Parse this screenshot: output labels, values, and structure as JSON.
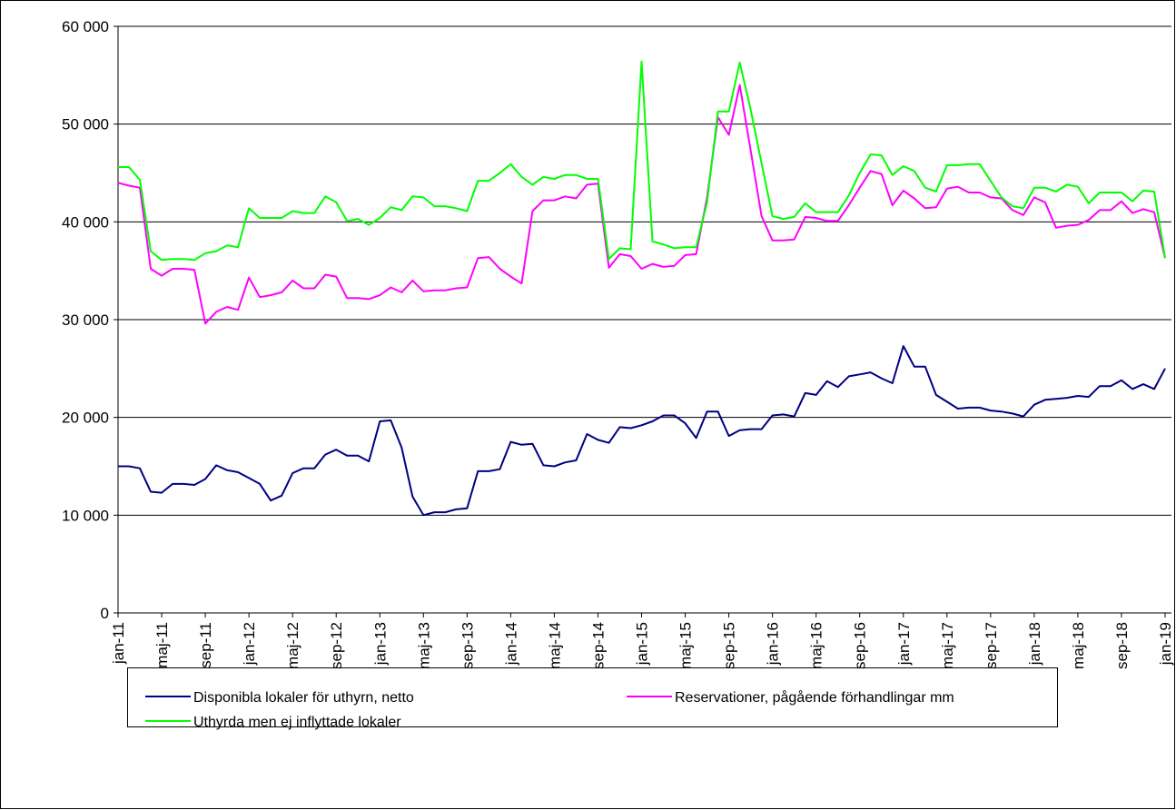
{
  "chart_data": {
    "type": "line",
    "categories": [
      "jan-11",
      null,
      null,
      null,
      "maj-11",
      null,
      null,
      null,
      "sep-11",
      null,
      null,
      null,
      "jan-12",
      null,
      null,
      null,
      "maj-12",
      null,
      null,
      null,
      "sep-12",
      null,
      null,
      null,
      "jan-13",
      null,
      null,
      null,
      "maj-13",
      null,
      null,
      null,
      "sep-13",
      null,
      null,
      null,
      "jan-14",
      null,
      null,
      null,
      "maj-14",
      null,
      null,
      null,
      "sep-14",
      null,
      null,
      null,
      "jan-15",
      null,
      null,
      null,
      "maj-15",
      null,
      null,
      null,
      "sep-15",
      null,
      null,
      null,
      "jan-16",
      null,
      null,
      null,
      "maj-16",
      null,
      null,
      null,
      "sep-16",
      null,
      null,
      null,
      "jan-17",
      null,
      null,
      null,
      "maj-17",
      null,
      null,
      null,
      "sep-17",
      null,
      null,
      null,
      "jan-18",
      null,
      null,
      null,
      "maj-18",
      null,
      null,
      null,
      "sep-18",
      null,
      null,
      null,
      "jan-19"
    ],
    "series": [
      {
        "name": "Disponibla lokaler för uthyrn, netto",
        "color": "#000080",
        "values": [
          15000,
          15000,
          14800,
          12400,
          12300,
          13200,
          13200,
          13100,
          13700,
          15100,
          14600,
          14400,
          13800,
          13200,
          11500,
          12000,
          14300,
          14800,
          14800,
          16200,
          16700,
          16100,
          16100,
          15500,
          19600,
          19700,
          16900,
          11900,
          10000,
          10300,
          10300,
          10600,
          10700,
          14500,
          14500,
          14700,
          17500,
          17200,
          17300,
          15100,
          15000,
          15400,
          15600,
          18300,
          17700,
          17400,
          19000,
          18900,
          19200,
          19600,
          20200,
          20200,
          19400,
          17900,
          20600,
          20600,
          18100,
          18700,
          18800,
          18800,
          20200,
          20300,
          20100,
          22500,
          22300,
          23700,
          23100,
          24200,
          24400,
          24600,
          24000,
          23500,
          27300,
          25200,
          25200,
          22300,
          21600,
          20900,
          21000,
          21000,
          20700,
          20600,
          20400,
          20100,
          21300,
          21800,
          21900,
          22000,
          22200,
          22100,
          23200,
          23200,
          23800,
          22900,
          23400,
          22900,
          25000
        ]
      },
      {
        "name": "Reservationer, pågående förhandlingar mm",
        "color": "#ff00ff",
        "values": [
          44000,
          43700,
          43500,
          35200,
          34500,
          35200,
          35200,
          35100,
          29600,
          30800,
          31300,
          31000,
          34300,
          32300,
          32500,
          32800,
          34000,
          33200,
          33200,
          34600,
          34400,
          32200,
          32200,
          32100,
          32500,
          33300,
          32800,
          34000,
          32900,
          33000,
          33000,
          33200,
          33300,
          36300,
          36400,
          35200,
          34400,
          33700,
          41100,
          42200,
          42200,
          42600,
          42400,
          43800,
          43900,
          35300,
          36700,
          36500,
          35200,
          35700,
          35400,
          35500,
          36600,
          36700,
          42500,
          50700,
          48900,
          54000,
          47300,
          40600,
          38100,
          38100,
          38200,
          40500,
          40400,
          40100,
          40100,
          41700,
          43500,
          45200,
          44900,
          41700,
          43200,
          42400,
          41400,
          41500,
          43400,
          43600,
          43000,
          43000,
          42500,
          42400,
          41200,
          40700,
          42500,
          42000,
          39400,
          39600,
          39700,
          40200,
          41200,
          41200,
          42100,
          40900,
          41300,
          41000,
          36300
        ]
      },
      {
        "name": "Uthyrda men ej inflyttade lokaler",
        "color": "#00ff00",
        "values": [
          45600,
          45600,
          44300,
          37000,
          36100,
          36200,
          36200,
          36100,
          36800,
          37000,
          37600,
          37400,
          41400,
          40400,
          40400,
          40400,
          41100,
          40900,
          40900,
          42600,
          42000,
          40100,
          40300,
          39700,
          40400,
          41500,
          41200,
          42600,
          42500,
          41600,
          41600,
          41400,
          41100,
          44200,
          44200,
          45000,
          45900,
          44600,
          43800,
          44600,
          44400,
          44800,
          44800,
          44400,
          44400,
          36200,
          37300,
          37200,
          56400,
          38000,
          37700,
          37300,
          37400,
          37400,
          42000,
          51300,
          51300,
          56300,
          51500,
          46000,
          40600,
          40300,
          40500,
          41900,
          41000,
          41000,
          41000,
          42700,
          45000,
          46900,
          46800,
          44800,
          45700,
          45200,
          43500,
          43100,
          45800,
          45800,
          45900,
          45900,
          44200,
          42500,
          41600,
          41400,
          43500,
          43500,
          43100,
          43800,
          43600,
          41900,
          43000,
          43000,
          43000,
          42100,
          43200,
          43100,
          36300
        ]
      }
    ],
    "ylim": [
      0,
      60000
    ],
    "yticks": [
      0,
      {
        "value": 10000,
        "label": "10 000"
      },
      {
        "value": 20000,
        "label": "20 000"
      },
      {
        "value": 30000,
        "label": "30 000"
      },
      {
        "value": 40000,
        "label": "40 000"
      },
      {
        "value": 50000,
        "label": "50 000"
      },
      {
        "value": 60000,
        "label": "60 000"
      }
    ],
    "grid": true
  }
}
